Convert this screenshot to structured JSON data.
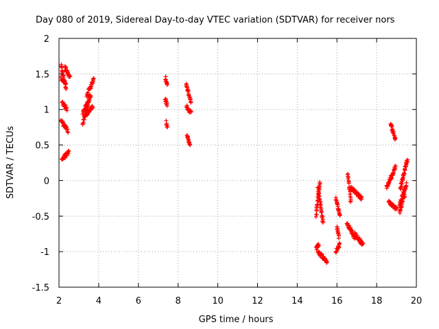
{
  "chart_data": {
    "type": "scatter",
    "title": "Day 080 of 2019, Sidereal Day-to-day VTEC variation (SDTVAR) for receiver nors",
    "xlabel": "GPS time / hours",
    "ylabel": "SDTVAR / TECUs",
    "xlim": [
      2,
      20
    ],
    "ylim": [
      -1.5,
      2
    ],
    "xticks": [
      2,
      4,
      6,
      8,
      10,
      12,
      14,
      16,
      18,
      20
    ],
    "yticks": [
      -1.5,
      -1,
      -0.5,
      0,
      0.5,
      1,
      1.5,
      2
    ],
    "xtick_labels": [
      "2",
      "4",
      "6",
      "8",
      "10",
      "12",
      "14",
      "16",
      "18",
      "20"
    ],
    "ytick_labels": [
      "-1.5",
      "-1",
      "-0.5",
      "0",
      "0.5",
      "1",
      "1.5",
      "2"
    ],
    "grid": true,
    "marker": "+",
    "marker_color": "#ff0000",
    "segments": [
      {
        "x0": 2.1,
        "x1": 2.35,
        "y0": 1.62,
        "y1": 1.3
      },
      {
        "x0": 2.1,
        "x1": 2.35,
        "y0": 1.45,
        "y1": 1.35
      },
      {
        "x0": 2.15,
        "x1": 2.4,
        "y0": 1.1,
        "y1": 1.0
      },
      {
        "x0": 2.1,
        "x1": 2.45,
        "y0": 0.85,
        "y1": 0.7
      },
      {
        "x0": 2.15,
        "x1": 2.5,
        "y0": 0.3,
        "y1": 0.4
      },
      {
        "x0": 2.3,
        "x1": 2.55,
        "y0": 1.6,
        "y1": 1.45
      },
      {
        "x0": 3.2,
        "x1": 3.6,
        "y0": 0.95,
        "y1": 1.2
      },
      {
        "x0": 3.2,
        "x1": 3.5,
        "y0": 0.8,
        "y1": 1.1
      },
      {
        "x0": 3.3,
        "x1": 3.7,
        "y0": 0.9,
        "y1": 1.05
      },
      {
        "x0": 3.4,
        "x1": 3.75,
        "y0": 1.2,
        "y1": 1.42
      },
      {
        "x0": 7.35,
        "x1": 7.45,
        "y0": 1.45,
        "y1": 1.35
      },
      {
        "x0": 7.35,
        "x1": 7.45,
        "y0": 1.15,
        "y1": 1.05
      },
      {
        "x0": 7.38,
        "x1": 7.45,
        "y0": 0.82,
        "y1": 0.75
      },
      {
        "x0": 8.4,
        "x1": 8.65,
        "y0": 1.35,
        "y1": 1.1
      },
      {
        "x0": 8.4,
        "x1": 8.65,
        "y0": 1.05,
        "y1": 0.95
      },
      {
        "x0": 8.45,
        "x1": 8.6,
        "y0": 0.65,
        "y1": 0.5
      },
      {
        "x0": 14.95,
        "x1": 15.15,
        "y0": -0.5,
        "y1": 0.0
      },
      {
        "x0": 15.05,
        "x1": 15.3,
        "y0": -0.1,
        "y1": -0.6
      },
      {
        "x0": 14.95,
        "x1": 15.1,
        "y0": -0.95,
        "y1": -0.9
      },
      {
        "x0": 15.05,
        "x1": 15.5,
        "y0": -1.0,
        "y1": -1.15
      },
      {
        "x0": 15.95,
        "x1": 16.15,
        "y0": -0.25,
        "y1": -0.5
      },
      {
        "x0": 16.0,
        "x1": 16.1,
        "y0": -0.65,
        "y1": -0.8
      },
      {
        "x0": 15.95,
        "x1": 16.15,
        "y0": -1.0,
        "y1": -0.9
      },
      {
        "x0": 16.55,
        "x1": 16.7,
        "y0": 0.1,
        "y1": -0.3
      },
      {
        "x0": 16.7,
        "x1": 17.25,
        "y0": -0.1,
        "y1": -0.25
      },
      {
        "x0": 16.5,
        "x1": 16.9,
        "y0": -0.6,
        "y1": -0.8
      },
      {
        "x0": 16.9,
        "x1": 17.3,
        "y0": -0.75,
        "y1": -0.9
      },
      {
        "x0": 18.5,
        "x1": 18.95,
        "y0": -0.1,
        "y1": 0.2
      },
      {
        "x0": 18.6,
        "x1": 19.0,
        "y0": -0.3,
        "y1": -0.4
      },
      {
        "x0": 18.7,
        "x1": 18.95,
        "y0": 0.8,
        "y1": 0.58
      },
      {
        "x0": 19.15,
        "x1": 19.5,
        "y0": -0.35,
        "y1": -0.05
      },
      {
        "x0": 19.2,
        "x1": 19.55,
        "y0": -0.1,
        "y1": 0.3
      },
      {
        "x0": 19.15,
        "x1": 19.4,
        "y0": -0.45,
        "y1": -0.2
      }
    ]
  }
}
